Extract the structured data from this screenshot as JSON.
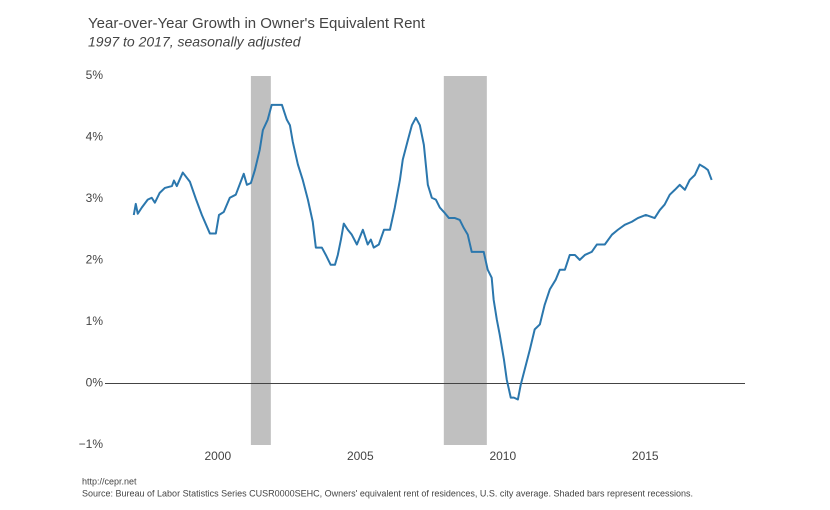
{
  "chart_data": {
    "type": "line",
    "title": "Year-over-Year Growth in Owner's Equivalent Rent",
    "subtitle": "1997 to 2017, seasonally adjusted",
    "source_url": "http://cepr.net",
    "source": "Source: Bureau of Labor Statistics Series CUSR0000SEHC, Owners' equivalent rent of residences, U.S. city average. Shaded bars represent recessions.",
    "xlim": [
      1996.04,
      2018.5
    ],
    "xticks": [
      2000,
      2005,
      2010,
      2015
    ],
    "ylim": [
      -1,
      5
    ],
    "yticks": [
      {
        "value": -1,
        "label": "−1%"
      },
      {
        "value": 0,
        "label": "0%"
      },
      {
        "value": 1,
        "label": "1%"
      },
      {
        "value": 2,
        "label": "2%"
      },
      {
        "value": 3,
        "label": "3%"
      },
      {
        "value": 4,
        "label": "4%"
      },
      {
        "value": 5,
        "label": "5%"
      }
    ],
    "zeroline": true,
    "recessions": [
      [
        2001.16,
        2001.86
      ],
      [
        2007.93,
        2009.44
      ]
    ],
    "recession_color": "#c0c0c0",
    "series": [
      {
        "color": "#2b77ad",
        "x": [
          1997.05,
          1997.12,
          1997.19,
          1997.33,
          1997.54,
          1997.68,
          1997.79,
          1997.96,
          1998.14,
          1998.39,
          1998.46,
          1998.56,
          1998.77,
          1999.02,
          1999.23,
          1999.44,
          1999.72,
          1999.93,
          2000.04,
          2000.21,
          2000.42,
          2000.63,
          2000.91,
          2001.02,
          2001.16,
          2001.3,
          2001.47,
          2001.58,
          2001.75,
          2001.89,
          2002.25,
          2002.42,
          2002.53,
          2002.63,
          2002.81,
          2002.98,
          2003.16,
          2003.33,
          2003.44,
          2003.65,
          2003.79,
          2003.96,
          2004.11,
          2004.21,
          2004.32,
          2004.42,
          2004.56,
          2004.7,
          2004.88,
          2005.09,
          2005.26,
          2005.37,
          2005.47,
          2005.65,
          2005.83,
          2006.04,
          2006.21,
          2006.39,
          2006.49,
          2006.67,
          2006.81,
          2006.95,
          2007.09,
          2007.23,
          2007.37,
          2007.51,
          2007.65,
          2007.79,
          2007.93,
          2008.11,
          2008.32,
          2008.49,
          2008.63,
          2008.77,
          2008.91,
          2009.33,
          2009.47,
          2009.61,
          2009.68,
          2009.79,
          2009.89,
          2010.04,
          2010.14,
          2010.28,
          2010.39,
          2010.53,
          2010.63,
          2010.77,
          2010.95,
          2011.12,
          2011.3,
          2011.47,
          2011.65,
          2011.86,
          2012.0,
          2012.18,
          2012.35,
          2012.53,
          2012.7,
          2012.88,
          2013.12,
          2013.3,
          2013.58,
          2013.83,
          2014.04,
          2014.28,
          2014.53,
          2014.74,
          2015.02,
          2015.33,
          2015.51,
          2015.68,
          2015.86,
          2016.04,
          2016.21,
          2016.39,
          2016.56,
          2016.74,
          2016.91,
          2017.09,
          2017.2,
          2017.33
        ],
        "values": [
          2.74,
          2.92,
          2.76,
          2.86,
          2.99,
          3.02,
          2.94,
          3.1,
          3.18,
          3.21,
          3.3,
          3.21,
          3.43,
          3.28,
          3.0,
          2.74,
          2.44,
          2.44,
          2.74,
          2.79,
          3.02,
          3.07,
          3.41,
          3.23,
          3.26,
          3.47,
          3.8,
          4.12,
          4.29,
          4.53,
          4.53,
          4.29,
          4.2,
          3.93,
          3.56,
          3.31,
          2.99,
          2.63,
          2.21,
          2.21,
          2.09,
          1.93,
          1.93,
          2.09,
          2.34,
          2.6,
          2.5,
          2.42,
          2.26,
          2.5,
          2.26,
          2.34,
          2.21,
          2.26,
          2.5,
          2.5,
          2.86,
          3.31,
          3.64,
          3.96,
          4.2,
          4.32,
          4.2,
          3.88,
          3.23,
          3.02,
          2.99,
          2.86,
          2.79,
          2.69,
          2.69,
          2.66,
          2.53,
          2.42,
          2.14,
          2.14,
          1.85,
          1.72,
          1.36,
          1.04,
          0.8,
          0.39,
          0.06,
          -0.23,
          -0.23,
          -0.26,
          -0.02,
          0.23,
          0.55,
          0.88,
          0.96,
          1.28,
          1.53,
          1.69,
          1.85,
          1.85,
          2.09,
          2.09,
          2.01,
          2.09,
          2.14,
          2.26,
          2.26,
          2.42,
          2.5,
          2.58,
          2.63,
          2.69,
          2.74,
          2.69,
          2.82,
          2.91,
          3.07,
          3.15,
          3.23,
          3.15,
          3.31,
          3.39,
          3.56,
          3.51,
          3.47,
          3.31
        ]
      }
    ]
  }
}
